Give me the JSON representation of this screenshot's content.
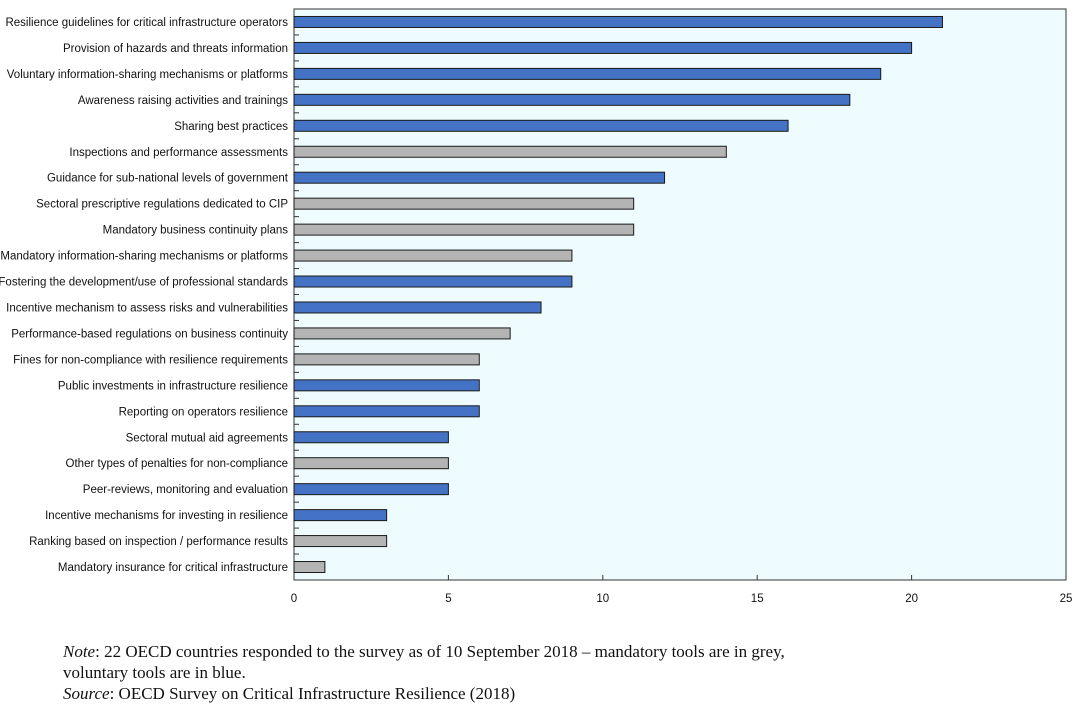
{
  "chart_data": {
    "type": "bar",
    "orientation": "horizontal",
    "categories": [
      "Resilience guidelines for critical infrastructure operators",
      "Provision of hazards and threats information",
      "Voluntary information-sharing mechanisms or platforms",
      "Awareness raising activities and trainings",
      "Sharing best practices",
      "Inspections and performance assessments",
      "Guidance for sub-national levels of government",
      "Sectoral prescriptive regulations dedicated to CIP",
      "Mandatory business continuity plans",
      "Mandatory information-sharing mechanisms or platforms",
      "Fostering the development/use of professional standards",
      "Incentive mechanism to assess risks and vulnerabilities",
      "Performance-based regulations on business continuity",
      "Fines for non-compliance with resilience requirements",
      "Public investments in infrastructure resilience",
      "Reporting  on operators resilience",
      "Sectoral mutual aid agreements",
      "Other types of penalties for non-compliance",
      "Peer-reviews, monitoring and evaluation",
      "Incentive mechanisms for investing in resilience",
      "Ranking based on inspection / performance results",
      "Mandatory insurance for critical infrastructure"
    ],
    "values": [
      21,
      20,
      19,
      18,
      16,
      14,
      12,
      11,
      11,
      9,
      9,
      8,
      7,
      6,
      6,
      6,
      5,
      5,
      5,
      3,
      3,
      1
    ],
    "tool_type": [
      "voluntary",
      "voluntary",
      "voluntary",
      "voluntary",
      "voluntary",
      "mandatory",
      "voluntary",
      "mandatory",
      "mandatory",
      "mandatory",
      "voluntary",
      "voluntary",
      "mandatory",
      "mandatory",
      "voluntary",
      "voluntary",
      "voluntary",
      "mandatory",
      "voluntary",
      "voluntary",
      "mandatory",
      "mandatory"
    ],
    "colors": {
      "voluntary": "#4472c4",
      "mandatory": "#b4b4b4",
      "plot_background": "#eefcff",
      "bar_edge": "#1a1a1a"
    },
    "xlim": [
      0,
      25
    ],
    "xticks": [
      0,
      5,
      10,
      15,
      20,
      25
    ],
    "title": "",
    "xlabel": "",
    "ylabel": "",
    "grid": false,
    "legend": "none"
  },
  "note": {
    "note_label": "Note",
    "note_text": ": 22 OECD countries responded to the survey as of 10 September 2018 – mandatory tools are in grey,",
    "note_text_2": "voluntary tools are in blue.",
    "source_label": "Source",
    "source_text": ": OECD Survey on Critical Infrastructure Resilience (2018)"
  }
}
